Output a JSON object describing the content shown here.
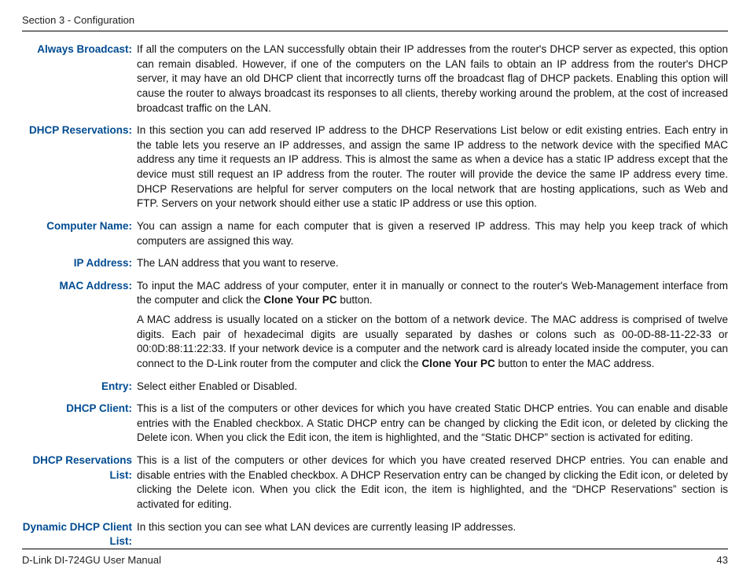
{
  "header": {
    "section": "Section 3 - Configuration"
  },
  "rows": [
    {
      "label": "Always Broadcast:",
      "desc": "If all the computers on the LAN successfully obtain their IP addresses from the router's DHCP server as expected, this option can remain disabled. However, if one of the computers on the LAN fails to obtain an IP address from the router's DHCP server, it may have an old DHCP client that incorrectly turns off the broadcast flag of DHCP packets. Enabling this option will cause the router to always broadcast its responses to all clients, thereby working around the problem, at the cost of increased broadcast traffic on the LAN."
    },
    {
      "label": "DHCP Reservations:",
      "desc": "In this section you can add reserved IP address to the DHCP Reservations List below or edit existing entries. Each entry in the table lets you reserve an IP addresses, and assign the same IP address to the network device with the specified MAC address any time it requests an IP address. This is almost the same as when a device has a static IP address except that the device must still request an IP address from the router. The router will provide the device the same IP address every time. DHCP Reservations are helpful for server computers on the local network that are hosting applications, such as Web and FTP. Servers on your network should either use a static IP address or use this option."
    },
    {
      "label": "Computer Name:",
      "desc": "You can assign a name for each computer that is given a reserved IP address. This may help you keep track of which computers are assigned this way."
    },
    {
      "label": "IP Address:",
      "desc": "The LAN address that you want to reserve."
    },
    {
      "label": "MAC Address:",
      "desc_parts": [
        "To input the MAC address of your computer, enter it in manually or connect to the router's Web-Management interface from the computer and click the ",
        {
          "bold": "Clone Your PC"
        },
        " button."
      ],
      "desc2_parts": [
        "A MAC address is usually located on a sticker on the bottom of a network device. The MAC address is comprised of twelve digits. Each pair of hexadecimal digits are usually separated by dashes or colons such as 00-0D-88-11-22-33 or 00:0D:88:11:22:33. If your network device is a computer and the network card is already located inside the computer, you can connect to the D-Link router from the computer and click the ",
        {
          "bold": "Clone Your PC"
        },
        " button to enter the MAC address."
      ]
    },
    {
      "label": "Entry:",
      "desc": "Select either Enabled or Disabled."
    },
    {
      "label": "DHCP Client:",
      "desc": "This is a list of the computers or other devices for which you have created Static DHCP entries. You can enable and disable entries with the Enabled checkbox. A Static DHCP entry can be changed by clicking the Edit icon, or deleted by clicking the Delete icon. When you click the Edit icon, the item is highlighted, and the “Static DHCP” section is activated for editing."
    },
    {
      "label": "DHCP Reservations List:",
      "desc": "This is a list of the computers or other devices for which you have created reserved DHCP entries. You can enable and disable entries with the Enabled checkbox. A DHCP Reservation entry can be changed by clicking the Edit icon, or deleted by clicking the Delete icon. When you click the Edit icon, the item is highlighted, and the “DHCP Reservations” section is activated for editing."
    },
    {
      "label": "Dynamic DHCP Client List:",
      "desc": "In this section you can see what LAN devices are currently leasing IP addresses."
    }
  ],
  "footer": {
    "manual": "D-Link DI-724GU User Manual",
    "page": "43"
  },
  "colors": {
    "label": "#004b91",
    "text": "#111111",
    "rule": "#000000"
  }
}
